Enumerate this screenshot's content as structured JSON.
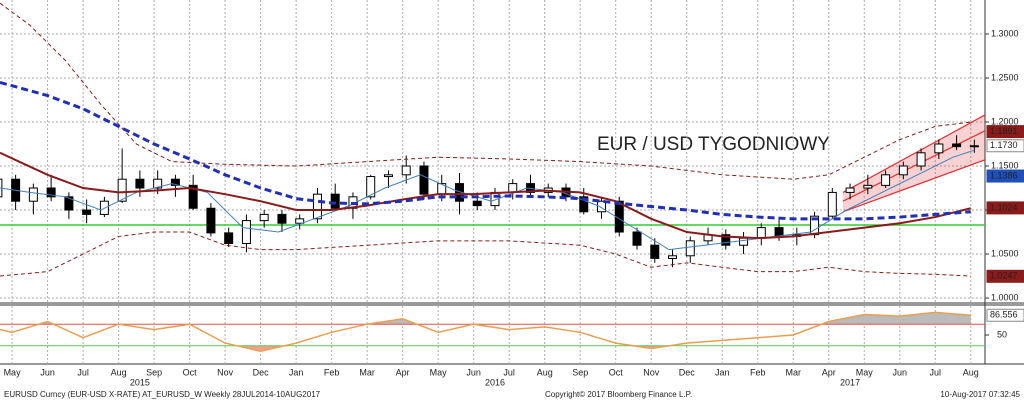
{
  "chart_data": [
    {
      "type": "candlestick",
      "title": "EUR / USD TYGODNIOWY",
      "title_color": "#d0121b",
      "x": [
        3.6,
        4.1,
        4.6,
        5.1,
        5.6,
        6.1,
        6.6,
        7.1,
        7.6,
        8.1,
        8.6,
        9.1,
        9.6,
        10.1,
        10.6,
        11.1,
        11.6,
        12.1,
        12.6,
        13.1,
        13.6,
        14.1,
        14.6,
        15.1,
        15.6,
        16.1,
        16.6,
        17.1,
        17.6,
        18.1,
        18.6,
        19.1,
        19.6,
        20.1,
        20.6,
        21.1,
        21.6,
        22.1,
        22.6,
        23.1,
        23.6,
        24.1,
        24.6,
        25.1,
        25.6,
        26.1,
        26.6,
        27.1,
        27.6,
        28.1,
        28.6,
        29.1,
        29.6,
        30.1,
        30.6,
        31.1
      ],
      "open": [
        1.115,
        1.135,
        1.11,
        1.125,
        1.115,
        1.1,
        1.095,
        1.11,
        1.135,
        1.125,
        1.135,
        1.128,
        1.102,
        1.074,
        1.062,
        1.088,
        1.095,
        1.085,
        1.09,
        1.118,
        1.102,
        1.115,
        1.138,
        1.14,
        1.15,
        1.118,
        1.13,
        1.11,
        1.105,
        1.12,
        1.13,
        1.12,
        1.125,
        1.115,
        1.098,
        1.11,
        1.075,
        1.06,
        1.045,
        1.048,
        1.065,
        1.072,
        1.06,
        1.068,
        1.08,
        1.07,
        1.072,
        1.093,
        1.12,
        1.125,
        1.128,
        1.14,
        1.15,
        1.165,
        1.175,
        1.172
      ],
      "high": [
        1.147,
        1.14,
        1.13,
        1.14,
        1.12,
        1.112,
        1.115,
        1.17,
        1.145,
        1.145,
        1.14,
        1.14,
        1.108,
        1.08,
        1.095,
        1.1,
        1.1,
        1.095,
        1.125,
        1.13,
        1.12,
        1.14,
        1.145,
        1.162,
        1.155,
        1.14,
        1.142,
        1.12,
        1.125,
        1.135,
        1.14,
        1.13,
        1.13,
        1.125,
        1.115,
        1.115,
        1.08,
        1.068,
        1.055,
        1.07,
        1.08,
        1.078,
        1.075,
        1.085,
        1.09,
        1.08,
        1.098,
        1.125,
        1.13,
        1.14,
        1.145,
        1.155,
        1.17,
        1.18,
        1.185,
        1.18
      ],
      "low": [
        1.108,
        1.1,
        1.095,
        1.11,
        1.09,
        1.085,
        1.092,
        1.108,
        1.115,
        1.118,
        1.115,
        1.1,
        1.07,
        1.058,
        1.052,
        1.08,
        1.075,
        1.078,
        1.085,
        1.1,
        1.09,
        1.112,
        1.125,
        1.13,
        1.112,
        1.11,
        1.095,
        1.1,
        1.1,
        1.112,
        1.115,
        1.115,
        1.11,
        1.095,
        1.09,
        1.07,
        1.055,
        1.04,
        1.035,
        1.04,
        1.06,
        1.055,
        1.05,
        1.06,
        1.065,
        1.06,
        1.068,
        1.09,
        1.112,
        1.118,
        1.125,
        1.135,
        1.145,
        1.158,
        1.168,
        1.165
      ],
      "close": [
        1.135,
        1.11,
        1.125,
        1.115,
        1.1,
        1.095,
        1.11,
        1.135,
        1.125,
        1.135,
        1.128,
        1.102,
        1.074,
        1.062,
        1.088,
        1.095,
        1.085,
        1.09,
        1.118,
        1.102,
        1.115,
        1.138,
        1.14,
        1.15,
        1.118,
        1.13,
        1.11,
        1.105,
        1.12,
        1.13,
        1.12,
        1.125,
        1.115,
        1.098,
        1.11,
        1.075,
        1.06,
        1.045,
        1.048,
        1.065,
        1.072,
        1.06,
        1.068,
        1.08,
        1.07,
        1.072,
        1.093,
        1.12,
        1.125,
        1.128,
        1.14,
        1.15,
        1.165,
        1.175,
        1.172,
        1.173
      ],
      "lines": [
        {
          "color": "#8b1a1a",
          "dash": true,
          "width": 1,
          "x": [
            3.66,
            4.5,
            5.5,
            6.5,
            7.5,
            8.5,
            10,
            12,
            14,
            16,
            18,
            20,
            22,
            24,
            26,
            27,
            28,
            29,
            30,
            31
          ],
          "values": [
            1.335,
            1.31,
            1.27,
            1.22,
            1.175,
            1.155,
            1.152,
            1.15,
            1.155,
            1.16,
            1.158,
            1.155,
            1.15,
            1.14,
            1.135,
            1.14,
            1.16,
            1.18,
            1.195,
            1.2
          ]
        },
        {
          "color": "#8b1a1a",
          "dash": true,
          "width": 1,
          "x": [
            3.66,
            5,
            6,
            7,
            8,
            9,
            10,
            11,
            12,
            14,
            16,
            18,
            20,
            21,
            22,
            23,
            24,
            25,
            26,
            27,
            28,
            29,
            30,
            31
          ],
          "values": [
            1.025,
            1.03,
            1.05,
            1.07,
            1.075,
            1.075,
            1.06,
            1.055,
            1.055,
            1.06,
            1.065,
            1.065,
            1.06,
            1.05,
            1.035,
            1.04,
            1.035,
            1.03,
            1.03,
            1.035,
            1.03,
            1.028,
            1.027,
            1.025
          ]
        },
        {
          "color": "#3d7fc1",
          "dash": false,
          "width": 1,
          "x": [
            3.66,
            4.5,
            5.5,
            6.5,
            7.5,
            8.5,
            9.5,
            10.5,
            11.5,
            12.5,
            13.5,
            14.5,
            15.5,
            16.5,
            17.5,
            18.5,
            19.5,
            20.5,
            21.5,
            22.5,
            23.5,
            24.5,
            25.5,
            26.5,
            27.5,
            28.5,
            29.5,
            30.5,
            31.1
          ],
          "values": [
            1.125,
            1.12,
            1.115,
            1.1,
            1.12,
            1.13,
            1.12,
            1.08,
            1.075,
            1.09,
            1.105,
            1.125,
            1.14,
            1.122,
            1.11,
            1.125,
            1.12,
            1.105,
            1.08,
            1.055,
            1.06,
            1.065,
            1.07,
            1.075,
            1.1,
            1.12,
            1.14,
            1.16,
            1.168
          ]
        },
        {
          "color": "#8b1a1a",
          "dash": false,
          "width": 2,
          "x": [
            3.66,
            5,
            6,
            7,
            8,
            9,
            10,
            11,
            12,
            13,
            14,
            15,
            16,
            17,
            18,
            19,
            20,
            21,
            22,
            23,
            24,
            25,
            26,
            27,
            28,
            29,
            30,
            31
          ],
          "values": [
            1.165,
            1.14,
            1.125,
            1.12,
            1.122,
            1.125,
            1.118,
            1.11,
            1.1,
            1.1,
            1.105,
            1.112,
            1.118,
            1.118,
            1.12,
            1.122,
            1.12,
            1.11,
            1.09,
            1.075,
            1.07,
            1.068,
            1.07,
            1.075,
            1.08,
            1.085,
            1.092,
            1.102
          ]
        },
        {
          "color": "#1f2fb8",
          "dash": true,
          "width": 3,
          "x": [
            3.66,
            5,
            6,
            7,
            8,
            9,
            10,
            11,
            12,
            13,
            14,
            15,
            16,
            17,
            18,
            19,
            20,
            21,
            22,
            23,
            24,
            25,
            26,
            27,
            28,
            29,
            30,
            31
          ],
          "values": [
            1.245,
            1.23,
            1.215,
            1.195,
            1.175,
            1.158,
            1.14,
            1.125,
            1.113,
            1.108,
            1.107,
            1.11,
            1.115,
            1.115,
            1.116,
            1.115,
            1.113,
            1.108,
            1.104,
            1.1,
            1.095,
            1.092,
            1.09,
            1.09,
            1.09,
            1.092,
            1.095,
            1.098
          ]
        }
      ],
      "channel": {
        "color": "#e03030",
        "x": [
          27.4,
          31.4
        ],
        "upper": [
          1.12,
          1.208
        ],
        "middle": [
          1.11,
          1.19
        ],
        "lower": [
          1.098,
          1.157
        ]
      },
      "hlines": [
        {
          "value": 1.083,
          "color": "#33cc33"
        }
      ],
      "price_labels": [
        {
          "value": 1.1891,
          "label": "1.1891",
          "color": "#8b1a1a"
        },
        {
          "value": 1.173,
          "label": "1.1730",
          "color": "#ffffff"
        },
        {
          "value": 1.1386,
          "label": "1.1386",
          "color": "#1f4fb8"
        },
        {
          "value": 1.1024,
          "label": "1.1024",
          "color": "#8b1a1a"
        },
        {
          "value": 1.0247,
          "label": "1.0247",
          "color": "#8b1a1a"
        }
      ],
      "xlim": [
        3.66,
        31.4
      ],
      "ylim": [
        0.9955,
        1.3386
      ],
      "yticks": [
        {
          "value": 1.0,
          "label": "1.0000"
        },
        {
          "value": 1.05,
          "label": "1.0500"
        },
        {
          "value": 1.1,
          "label": "1.1000"
        },
        {
          "value": 1.15,
          "label": "1.1500"
        },
        {
          "value": 1.2,
          "label": "1.2000"
        },
        {
          "value": 1.25,
          "label": "1.2500"
        },
        {
          "value": 1.3,
          "label": "1.3000"
        }
      ],
      "xticks": [
        {
          "value": 4,
          "label": "May"
        },
        {
          "value": 5,
          "label": "Jun"
        },
        {
          "value": 6,
          "label": "Jul"
        },
        {
          "value": 7,
          "label": "Aug"
        },
        {
          "value": 8,
          "label": "Sep"
        },
        {
          "value": 9,
          "label": "Oct"
        },
        {
          "value": 10,
          "label": "Nov"
        },
        {
          "value": 11,
          "label": "Dec"
        },
        {
          "value": 12,
          "label": "Jan"
        },
        {
          "value": 13,
          "label": "Feb"
        },
        {
          "value": 14,
          "label": "Mar"
        },
        {
          "value": 15,
          "label": "Apr"
        },
        {
          "value": 16,
          "label": "May"
        },
        {
          "value": 17,
          "label": "Jun"
        },
        {
          "value": 18,
          "label": "Jul"
        },
        {
          "value": 19,
          "label": "Aug"
        },
        {
          "value": 20,
          "label": "Sep"
        },
        {
          "value": 21,
          "label": "Oct"
        },
        {
          "value": 22,
          "label": "Nov"
        },
        {
          "value": 23,
          "label": "Dec"
        },
        {
          "value": 24,
          "label": "Jan"
        },
        {
          "value": 25,
          "label": "Feb"
        },
        {
          "value": 26,
          "label": "Mar"
        },
        {
          "value": 27,
          "label": "Apr"
        },
        {
          "value": 28,
          "label": "May"
        },
        {
          "value": 29,
          "label": "Jun"
        },
        {
          "value": 30,
          "label": "Jul"
        },
        {
          "value": 31,
          "label": "Aug"
        }
      ],
      "year_ticks": [
        {
          "value": 7.6,
          "label": "2015"
        },
        {
          "value": 17.6,
          "label": "2016"
        },
        {
          "value": 27.6,
          "label": "2017"
        }
      ],
      "grid": true
    },
    {
      "type": "line",
      "color": "#e8a050",
      "x": [
        3.66,
        4,
        5,
        6,
        7,
        8,
        9,
        10,
        11,
        12,
        13,
        14,
        15,
        16,
        17,
        18,
        19,
        20,
        21,
        22,
        23,
        24,
        25,
        26,
        27,
        28,
        29,
        30,
        31
      ],
      "values": [
        60,
        55,
        75,
        45,
        70,
        60,
        70,
        35,
        20,
        35,
        55,
        70,
        80,
        55,
        70,
        60,
        65,
        55,
        35,
        25,
        35,
        40,
        45,
        50,
        75,
        88,
        85,
        92,
        86.556
      ],
      "ylim": [
        0,
        100
      ],
      "yticks": [
        50
      ],
      "hlines": [
        {
          "value": 70,
          "color": "#e05050"
        },
        {
          "value": 30,
          "color": "#55cc55"
        }
      ]
    }
  ],
  "footer": {
    "left": "EURUSD Curncy (EUR-USD X-RATE) AT_EURUSD_W  Weekly 28JUL2014-10AUG2017",
    "center": "Copyright© 2017 Bloomberg Finance L.P.",
    "right": "10-Aug-2017 07:32:45"
  }
}
